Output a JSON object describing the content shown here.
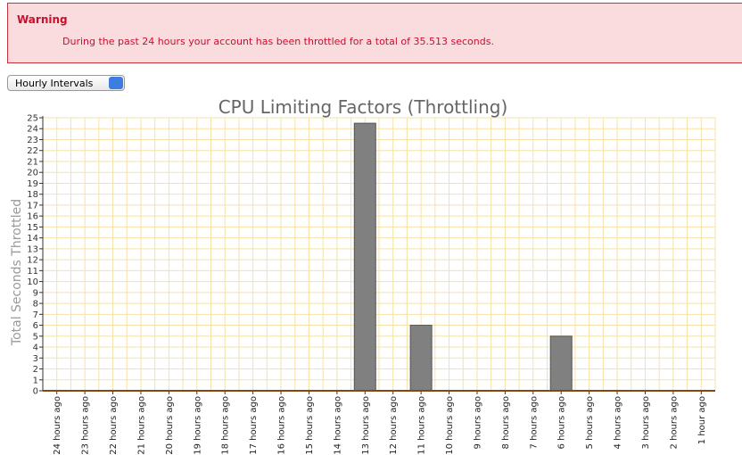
{
  "warning": {
    "title": "Warning",
    "message": "During the past 24 hours your account has been throttled for a total of 35.513 seconds."
  },
  "select": {
    "label": "Hourly Intervals"
  },
  "chart_data": {
    "type": "bar",
    "title": "CPU Limiting Factors (Throttling)",
    "y_label": "Total Seconds Throttled",
    "categories": [
      "24 hours ago",
      "23 hours ago",
      "22 hours ago",
      "21 hours ago",
      "20 hours ago",
      "19 hours ago",
      "18 hours ago",
      "17 hours ago",
      "16 hours ago",
      "15 hours ago",
      "14 hours ago",
      "13 hours ago",
      "12 hours ago",
      "11 hours ago",
      "10 hours ago",
      "9 hours ago",
      "8 hours ago",
      "7 hours ago",
      "6 hours ago",
      "5 hours ago",
      "4 hours ago",
      "3 hours ago",
      "2 hours ago",
      "1 hour ago"
    ],
    "values": [
      0,
      0,
      0,
      0,
      0,
      0,
      0,
      0,
      0,
      0,
      0,
      24.5,
      0,
      6,
      0,
      0,
      0,
      0,
      5,
      0,
      0,
      0,
      0,
      0
    ],
    "color": "#808080",
    "ylim": [
      0,
      25
    ],
    "yticks": [
      0,
      1,
      2,
      3,
      4,
      5,
      6,
      7,
      8,
      9,
      10,
      11,
      12,
      13,
      14,
      15,
      16,
      17,
      18,
      19,
      20,
      21,
      22,
      23,
      24,
      25
    ],
    "grid": true
  }
}
